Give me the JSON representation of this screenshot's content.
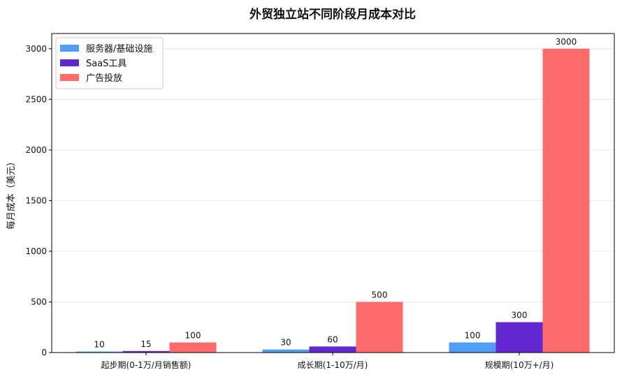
{
  "chart_data": {
    "type": "bar",
    "title": "外贸独立站不同阶段月成本对比",
    "xlabel": "",
    "ylabel": "每月成本（美元）",
    "categories": [
      "起步期(0-1万/月销售额)",
      "成长期(1-10万/月)",
      "规模期(10万+/月)"
    ],
    "series": [
      {
        "name": "服务器/基础设施",
        "values": [
          10,
          30,
          100
        ],
        "color": "#4f9df5"
      },
      {
        "name": "SaaS工具",
        "values": [
          15,
          60,
          300
        ],
        "color": "#6227cf"
      },
      {
        "name": "广告投放",
        "values": [
          100,
          500,
          3000
        ],
        "color": "#fe6b6b"
      }
    ],
    "ylim": [
      0,
      3150
    ],
    "yticks": [
      0,
      500,
      1000,
      1500,
      2000,
      2500,
      3000
    ],
    "grid": "horizontal",
    "legend_position": "top-left"
  }
}
